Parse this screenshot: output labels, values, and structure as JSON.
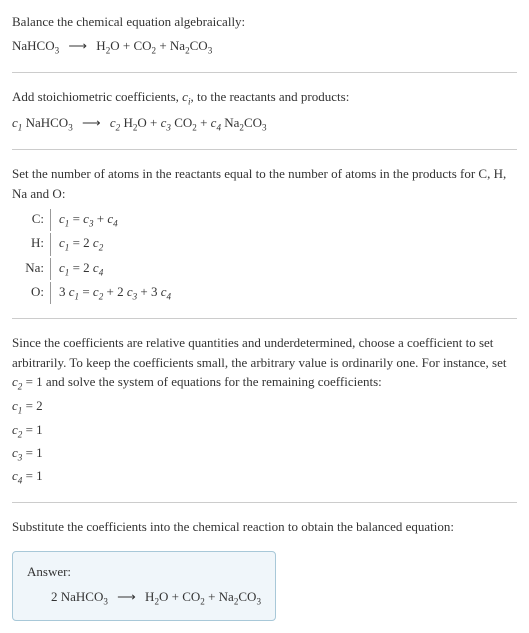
{
  "section1": {
    "title": "Balance the chemical equation algebraically:",
    "reactant": "NaHCO",
    "reactant_sub": "3",
    "arrow": "⟶",
    "p1": "H",
    "p1_sub": "2",
    "p1b": "O",
    "plus": " + ",
    "p2": "CO",
    "p2_sub": "2",
    "p3": "Na",
    "p3_sub": "2",
    "p3b": "CO",
    "p3b_sub": "3"
  },
  "section2": {
    "intro_a": "Add stoichiometric coefficients, ",
    "intro_ci": "c",
    "intro_ci_sub": "i",
    "intro_b": ", to the reactants and products:",
    "c1": "c",
    "c1_sub": "1",
    "r1": " NaHCO",
    "r1_sub": "3",
    "arrow": "⟶",
    "c2": "c",
    "c2_sub": "2",
    "p1a": " H",
    "p1a_sub": "2",
    "p1b": "O",
    "plus": " + ",
    "c3": "c",
    "c3_sub": "3",
    "p2": " CO",
    "p2_sub": "2",
    "c4": "c",
    "c4_sub": "4",
    "p3a": " Na",
    "p3a_sub": "2",
    "p3b": "CO",
    "p3b_sub": "3"
  },
  "section3": {
    "intro": "Set the number of atoms in the reactants equal to the number of atoms in the products for C, H, Na and O:",
    "rows": [
      {
        "label": "C:",
        "lhs_c": "c",
        "lhs_sub": "1",
        "eq": " = ",
        "rhs_c1": "c",
        "rhs_s1": "3",
        "plus": " + ",
        "rhs_c2": "c",
        "rhs_s2": "4"
      },
      {
        "label": "H:",
        "lhs_c": "c",
        "lhs_sub": "1",
        "eq": " = 2 ",
        "rhs_c1": "c",
        "rhs_s1": "2"
      },
      {
        "label": "Na:",
        "lhs_c": "c",
        "lhs_sub": "1",
        "eq": " = 2 ",
        "rhs_c1": "c",
        "rhs_s1": "4"
      },
      {
        "label": "O:",
        "lhs_pre": "3 ",
        "lhs_c": "c",
        "lhs_sub": "1",
        "eq": " = ",
        "rhs_c1": "c",
        "rhs_s1": "2",
        "plus": " + 2 ",
        "rhs_c2": "c",
        "rhs_s2": "3",
        "plus2": " + 3 ",
        "rhs_c3": "c",
        "rhs_s3": "4"
      }
    ]
  },
  "section4": {
    "text_a": "Since the coefficients are relative quantities and underdetermined, choose a coefficient to set arbitrarily. To keep the coefficients small, the arbitrary value is ordinarily one. For instance, set ",
    "c2": "c",
    "c2_sub": "2",
    "text_b": " = 1 and solve the system of equations for the remaining coefficients:",
    "coeffs": [
      {
        "c": "c",
        "sub": "1",
        "val": " = 2"
      },
      {
        "c": "c",
        "sub": "2",
        "val": " = 1"
      },
      {
        "c": "c",
        "sub": "3",
        "val": " = 1"
      },
      {
        "c": "c",
        "sub": "4",
        "val": " = 1"
      }
    ]
  },
  "section5": {
    "text": "Substitute the coefficients into the chemical reaction to obtain the balanced equation:"
  },
  "answer": {
    "label": "Answer:",
    "coeff": "2 ",
    "r1": "NaHCO",
    "r1_sub": "3",
    "arrow": "⟶",
    "p1a": "H",
    "p1a_sub": "2",
    "p1b": "O",
    "plus": " + ",
    "p2": "CO",
    "p2_sub": "2",
    "p3a": "Na",
    "p3a_sub": "2",
    "p3b": "CO",
    "p3b_sub": "3"
  }
}
